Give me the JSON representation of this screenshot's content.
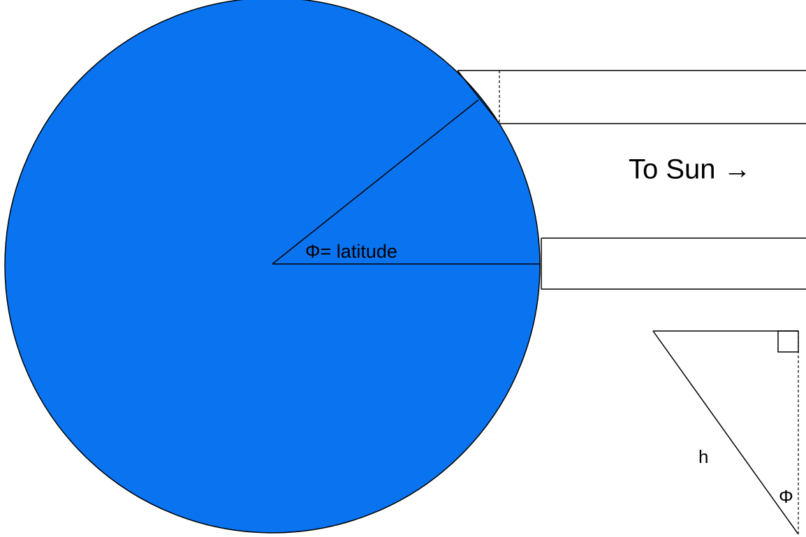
{
  "labels": {
    "latitude": "Φ= latitude",
    "sun": "To Sun →",
    "hypotenuse": "h",
    "angle": "Φ"
  }
}
